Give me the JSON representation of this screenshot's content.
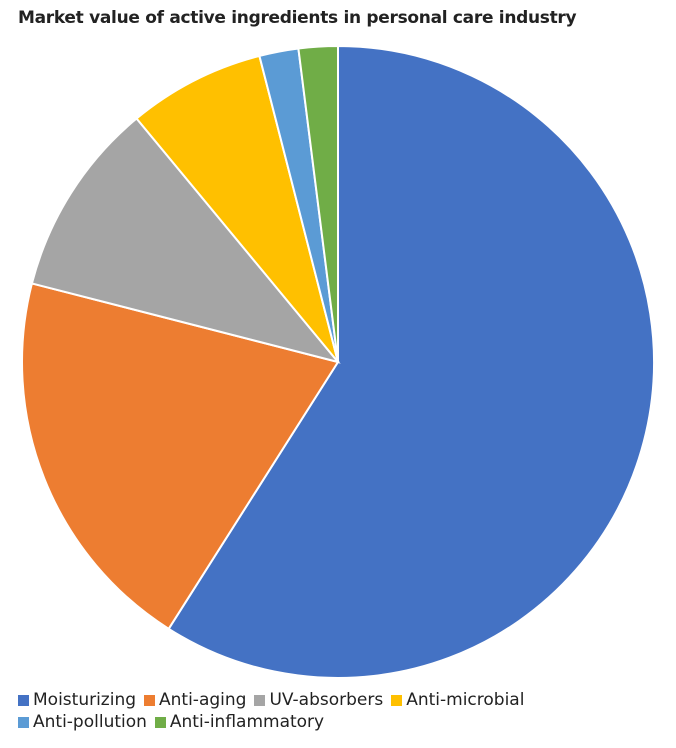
{
  "chart_data": {
    "type": "pie",
    "title": "Market value of active ingredients in personal care industry",
    "categories": [
      "Moisturizing",
      "Anti-aging",
      "UV-absorbers",
      "Anti-microbial",
      "Anti-pollution",
      "Anti-inflammatory"
    ],
    "values": [
      59,
      20,
      10,
      7,
      2,
      2
    ],
    "colors": [
      "#4472c4",
      "#ed7d31",
      "#a5a5a5",
      "#ffc000",
      "#5b9bd5",
      "#70ad47"
    ],
    "legend": "bottom"
  }
}
